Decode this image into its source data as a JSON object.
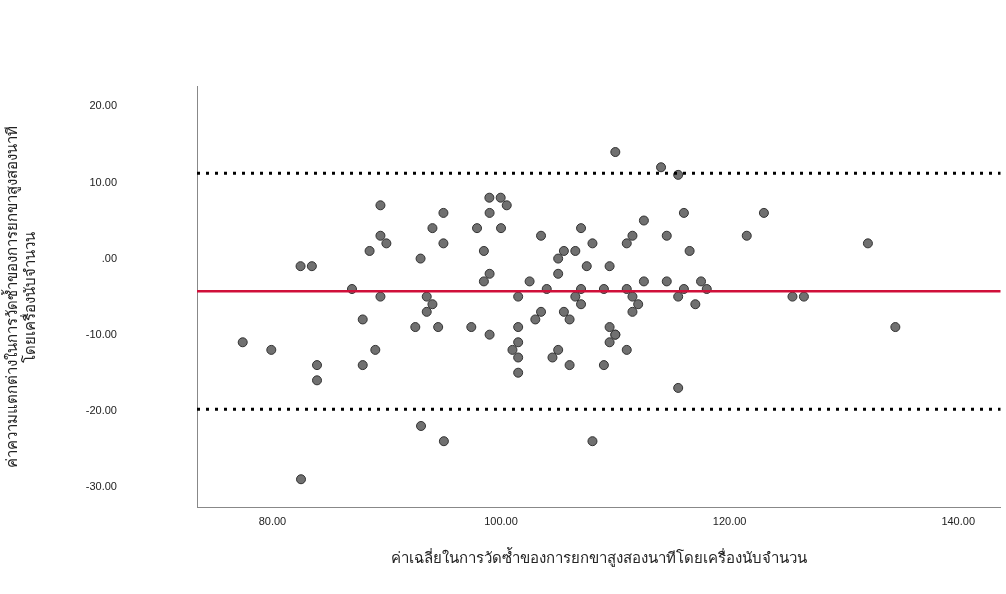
{
  "chart_data": {
    "type": "scatter",
    "xlabel": "ค่าเฉลี่ยในการวัดซ้ำของการยกขาสูงสองนาทีโดยเครื่องนับจำนวน",
    "ylabel": "ค่าความแตกต่างในการวัดซ้ำของการยกขาสูงสองนาที\nโดยเครื่องนับจำนวน",
    "xlim": [
      73.4,
      143.7
    ],
    "ylim": [
      -32.7,
      22.6
    ],
    "xticks": [
      {
        "value": 80,
        "label": "80.00"
      },
      {
        "value": 100,
        "label": "100.00"
      },
      {
        "value": 120,
        "label": "120.00"
      },
      {
        "value": 140,
        "label": "140.00"
      }
    ],
    "yticks": [
      {
        "value": -30,
        "label": "-30.00"
      },
      {
        "value": -20,
        "label": "-20.00"
      },
      {
        "value": -10,
        "label": "-10.00"
      },
      {
        "value": 0,
        "label": ".00"
      },
      {
        "value": 10,
        "label": "10.00"
      },
      {
        "value": 20,
        "label": "20.00"
      }
    ],
    "grid": false,
    "legend": false,
    "marker": "circle",
    "x": [
      89.45,
      94.96,
      94.0,
      97.9,
      89.45,
      89.97,
      94.96,
      88.5,
      92.96,
      82.46,
      83.45,
      86.96,
      89.45,
      93.5,
      94.0,
      93.5,
      87.9,
      92.5,
      94.5,
      97.4,
      110.0,
      114.0,
      115.5,
      98.98,
      99.97,
      100.5,
      99.0,
      116.0,
      112.5,
      100.0,
      107.0,
      103.5,
      111.5,
      114.5,
      108.0,
      111.0,
      121.5,
      98.5,
      105.5,
      106.5,
      116.5,
      105.0,
      107.5,
      109.5,
      99.0,
      105.0,
      98.5,
      102.5,
      112.5,
      114.5,
      117.5,
      104.0,
      107.0,
      109.0,
      111.0,
      116.0,
      118.0,
      101.5,
      106.5,
      111.5,
      115.5,
      107.0,
      112.0,
      117.0,
      103.5,
      105.5,
      111.5,
      103.0,
      106.0,
      101.5,
      109.5,
      99.0,
      110.0,
      123.0,
      132.1,
      125.5,
      126.5,
      134.5,
      77.4,
      79.9,
      83.9,
      83.9,
      87.9,
      89.0,
      93.0,
      95.0,
      82.5,
      101.5,
      101.0,
      101.5,
      101.5,
      105.0,
      104.5,
      106.0,
      110.0,
      109.5,
      111.0,
      109.0,
      115.5,
      108.0
    ],
    "series": [
      {
        "color": "#707070",
        "values": [
          7,
          6,
          4,
          4,
          3,
          2,
          2,
          1,
          0,
          -1,
          -1,
          -4,
          -5,
          -5,
          -6,
          -7,
          -8,
          -9,
          -9,
          -9,
          14,
          12,
          11,
          8,
          8,
          7,
          6,
          6,
          5,
          4,
          4,
          3,
          3,
          3,
          2,
          2,
          3,
          1,
          1,
          1,
          1,
          0,
          -1,
          -1,
          -2,
          -2,
          -3,
          -3,
          -3,
          -3,
          -3,
          -4,
          -4,
          -4,
          -4,
          -4,
          -4,
          -5,
          -5,
          -5,
          -5,
          -6,
          -6,
          -6,
          -7,
          -7,
          -7,
          -8,
          -8,
          -9,
          -9,
          -10,
          -10,
          6,
          2,
          -5,
          -5,
          -9,
          -11,
          -12,
          -14,
          -16,
          -14,
          -12,
          -22,
          -24,
          -29,
          -11,
          -12,
          -13,
          -15,
          -12,
          -13,
          -14,
          -10,
          -11,
          -12,
          -14,
          -17,
          -24
        ]
      }
    ],
    "ref_lines": [
      {
        "axis": "y",
        "value": 11.2,
        "color": "#000000",
        "line_style": "dotted"
      },
      {
        "axis": "y",
        "value": -4.3,
        "color": "#d0103a",
        "line_style": "solid"
      },
      {
        "axis": "y",
        "value": -19.8,
        "color": "#000000",
        "line_style": "dotted"
      }
    ]
  }
}
